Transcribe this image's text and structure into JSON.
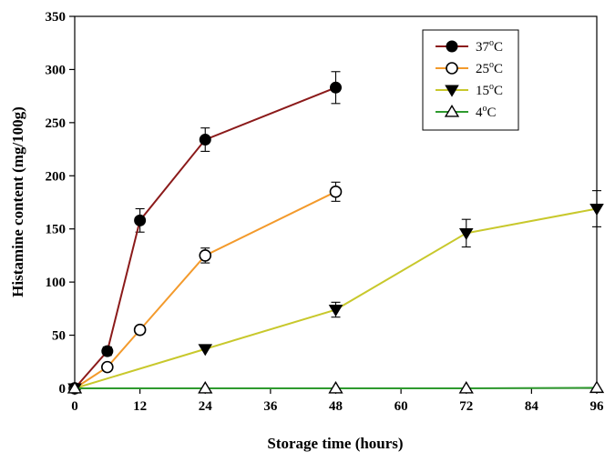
{
  "chart_data": {
    "type": "line",
    "title": "",
    "xlabel": "Storage time (hours)",
    "ylabel": "Histamine content (mg/100g)",
    "xlim": [
      0,
      96
    ],
    "ylim": [
      0,
      350
    ],
    "xticks": [
      0,
      12,
      24,
      36,
      48,
      60,
      72,
      84,
      96
    ],
    "yticks": [
      0,
      50,
      100,
      150,
      200,
      250,
      300,
      350
    ],
    "legend_position": "top-right",
    "series": [
      {
        "name": "37°C",
        "base": "37",
        "sup": "o",
        "unit": "C",
        "color": "#8b1a1a",
        "marker": "circle-filled",
        "x": [
          0,
          6,
          12,
          24,
          48
        ],
        "y": [
          0,
          35,
          158,
          234,
          283
        ],
        "err": [
          0,
          4,
          11,
          11,
          15
        ]
      },
      {
        "name": "25°C",
        "base": "25",
        "sup": "o",
        "unit": "C",
        "color": "#f39a2c",
        "marker": "circle-open",
        "x": [
          0,
          6,
          12,
          24,
          48
        ],
        "y": [
          0,
          20,
          55,
          125,
          185
        ],
        "err": [
          0,
          0,
          0,
          7,
          9
        ]
      },
      {
        "name": "15°C",
        "base": "15",
        "sup": "o",
        "unit": "C",
        "color": "#c8c82c",
        "marker": "triangle-down-filled",
        "x": [
          0,
          24,
          48,
          72,
          96
        ],
        "y": [
          0,
          37,
          74,
          146,
          169
        ],
        "err": [
          0,
          0,
          7,
          13,
          17
        ]
      },
      {
        "name": "4°C",
        "base": "4",
        "sup": "o",
        "unit": "C",
        "color": "#2e9a2e",
        "marker": "triangle-up-open",
        "x": [
          0,
          24,
          48,
          72,
          96
        ],
        "y": [
          0,
          0,
          0,
          0,
          0.5
        ],
        "err": [
          0,
          0,
          0,
          0,
          0
        ]
      }
    ]
  }
}
